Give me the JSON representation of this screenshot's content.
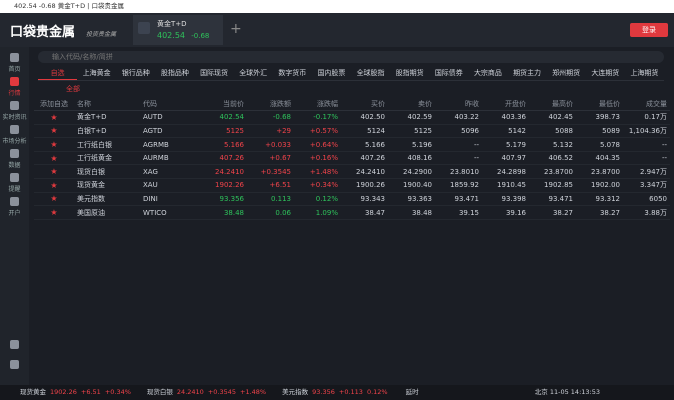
{
  "window": {
    "title": "402.54 -0.68 黄金T+D | 口袋贵金属"
  },
  "header": {
    "logo": "口袋贵金属",
    "slogan": "投资贵金属",
    "tab": {
      "name": "黄金T+D",
      "price": "402.54",
      "change": "-0.68"
    },
    "login": "登录"
  },
  "sidebar": [
    "首页",
    "行情",
    "实时资讯",
    "市场分析",
    "数据",
    "提醒",
    "开户"
  ],
  "search": {
    "placeholder": "输入代码/名称/简拼"
  },
  "tabs": [
    "自选",
    "上海黄金",
    "银行品种",
    "股指品种",
    "国际现货",
    "全球外汇",
    "数字货币",
    "国内股票",
    "全球股指",
    "股指期货",
    "国际债券",
    "大宗商品",
    "期货主力",
    "郑州期货",
    "大连期货",
    "上海期货"
  ],
  "subtab": "全部",
  "table": {
    "columns": [
      "添加自选",
      "名称",
      "代码",
      "当前价",
      "涨跌额",
      "涨跌幅",
      "买价",
      "卖价",
      "昨收",
      "开盘价",
      "最高价",
      "最低价",
      "成交量"
    ],
    "rows": [
      [
        "黄金T+D",
        "AUTD",
        "402.54",
        "-0.68",
        "-0.17%",
        "402.50",
        "402.59",
        "403.22",
        "403.36",
        "402.45",
        "398.73",
        "0.17万"
      ],
      [
        "白银T+D",
        "AGTD",
        "5125",
        "+29",
        "+0.57%",
        "5124",
        "5125",
        "5096",
        "5142",
        "5088",
        "5089",
        "1,104.36万"
      ],
      [
        "工行纸白银",
        "AGRMB",
        "5.166",
        "+0.033",
        "+0.64%",
        "5.166",
        "5.196",
        "--",
        "5.179",
        "5.132",
        "5.078",
        "--"
      ],
      [
        "工行纸黄金",
        "AURMB",
        "407.26",
        "+0.67",
        "+0.16%",
        "407.26",
        "408.16",
        "--",
        "407.97",
        "406.52",
        "404.35",
        "--"
      ],
      [
        "现货白银",
        "XAG",
        "24.2410",
        "+0.3545",
        "+1.48%",
        "24.2410",
        "24.2900",
        "23.8010",
        "24.2898",
        "23.8700",
        "23.8700",
        "2.947万"
      ],
      [
        "现货黄金",
        "XAU",
        "1902.26",
        "+6.51",
        "+0.34%",
        "1900.26",
        "1900.40",
        "1859.92",
        "1910.45",
        "1902.85",
        "1902.00",
        "3.347万"
      ],
      [
        "美元指数",
        "DINI",
        "93.356",
        "0.113",
        "0.12%",
        "93.343",
        "93.363",
        "93.471",
        "93.398",
        "93.471",
        "93.312",
        "6050"
      ],
      [
        "美国原油",
        "WTICO",
        "38.48",
        "0.06",
        "1.09%",
        "38.47",
        "38.48",
        "39.15",
        "39.16",
        "38.27",
        "38.27",
        "3.88万"
      ]
    ]
  },
  "status": {
    "items": [
      [
        "现货黄金",
        "1902.26",
        "+6.51",
        "+0.34%"
      ],
      [
        "现货白银",
        "24.2410",
        "+0.3545",
        "+1.48%"
      ],
      [
        "美元指数",
        "93.356",
        "+0.113",
        "0.12%"
      ]
    ],
    "delay": "延时",
    "clock": "北京 11-05 14:13:53"
  }
}
